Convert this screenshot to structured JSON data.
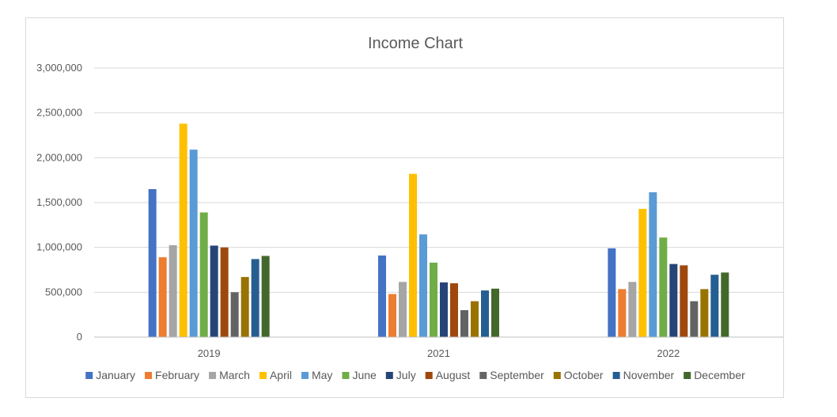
{
  "chart_data": {
    "type": "bar",
    "title": "Income Chart",
    "xlabel": "",
    "ylabel": "",
    "categories": [
      "2019",
      "2021",
      "2022"
    ],
    "ylim": [
      0,
      3000000
    ],
    "yticks": [
      0,
      500000,
      1000000,
      1500000,
      2000000,
      2500000,
      3000000
    ],
    "ytick_labels": [
      "0",
      "500,000",
      "1,000,000",
      "1,500,000",
      "2,000,000",
      "2,500,000",
      "3,000,000"
    ],
    "grid": true,
    "legend_position": "bottom",
    "series": [
      {
        "name": "January",
        "color": "#4472C4",
        "values": [
          1650000,
          910000,
          990000
        ]
      },
      {
        "name": "February",
        "color": "#ED7D31",
        "values": [
          890000,
          480000,
          535000
        ]
      },
      {
        "name": "March",
        "color": "#A5A5A5",
        "values": [
          1025000,
          615000,
          615000
        ]
      },
      {
        "name": "April",
        "color": "#FFC000",
        "values": [
          2380000,
          1820000,
          1430000
        ]
      },
      {
        "name": "May",
        "color": "#5B9BD5",
        "values": [
          2090000,
          1145000,
          1615000
        ]
      },
      {
        "name": "June",
        "color": "#70AD47",
        "values": [
          1390000,
          830000,
          1110000
        ]
      },
      {
        "name": "July",
        "color": "#264478",
        "values": [
          1020000,
          610000,
          815000
        ]
      },
      {
        "name": "August",
        "color": "#9E480E",
        "values": [
          1000000,
          600000,
          800000
        ]
      },
      {
        "name": "September",
        "color": "#636363",
        "values": [
          500000,
          300000,
          400000
        ]
      },
      {
        "name": "October",
        "color": "#997300",
        "values": [
          670000,
          400000,
          535000
        ]
      },
      {
        "name": "November",
        "color": "#255E91",
        "values": [
          870000,
          520000,
          695000
        ]
      },
      {
        "name": "December",
        "color": "#43682B",
        "values": [
          905000,
          540000,
          720000
        ]
      }
    ]
  }
}
